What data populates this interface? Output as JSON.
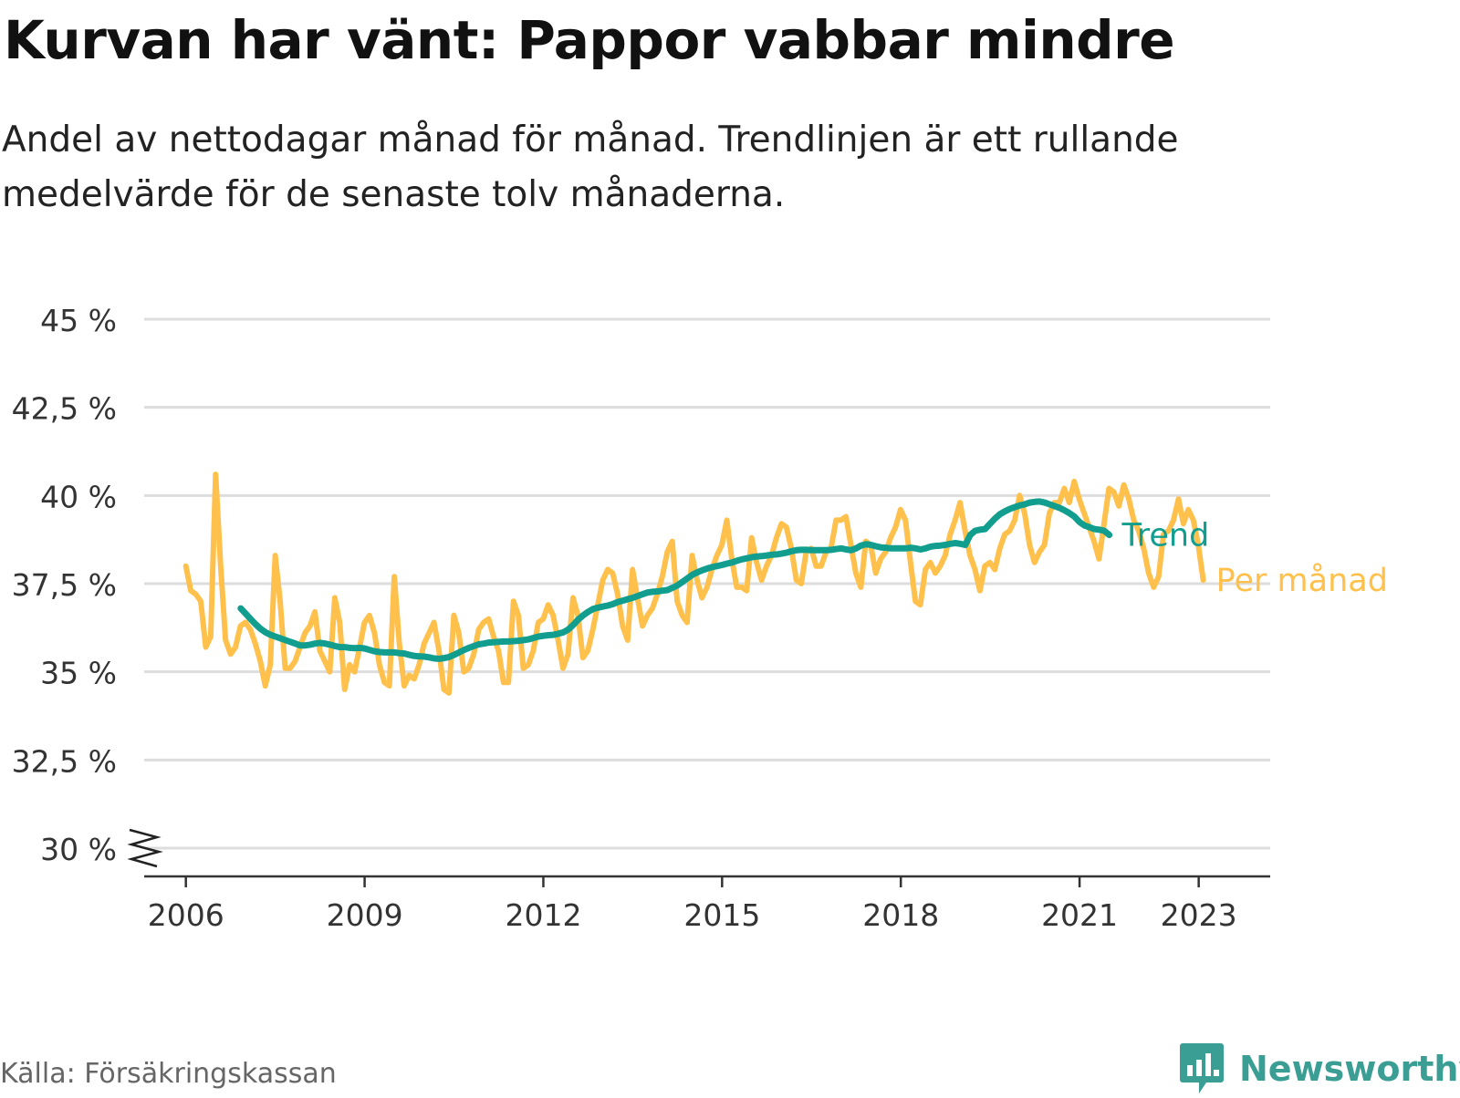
{
  "title": "Kurvan har vänt: Pappor vabbar mindre",
  "subtitle": "Andel av nettodagar månad för månad. Trendlinjen är ett rullande medelvärde för de senaste tolv månaderna.",
  "source": "Källa: Försäkringskassan",
  "brand": {
    "name": "Newsworthy",
    "icon": "newsworthy-logo-icon",
    "color": "#3a9e94"
  },
  "chart_data": {
    "type": "line",
    "title": "Kurvan har vänt: Pappor vabbar mindre",
    "xlabel": "",
    "ylabel": "",
    "ylim": [
      30,
      45
    ],
    "yticks": [
      30,
      32.5,
      35,
      37.5,
      40,
      42.5,
      45
    ],
    "ytick_labels": [
      "30 %",
      "32,5 %",
      "35 %",
      "37,5 %",
      "40 %",
      "42,5 %",
      "45 %"
    ],
    "xlim": [
      2005.3,
      2024.2
    ],
    "xticks": [
      2006,
      2009,
      2012,
      2015,
      2018,
      2021,
      2023
    ],
    "xtick_labels": [
      "2006",
      "2009",
      "2012",
      "2015",
      "2018",
      "2021",
      "2023"
    ],
    "grid": true,
    "axis_break": true,
    "legend": "direct-labels-right",
    "series": [
      {
        "name": "Per månad",
        "color": "#ffc04c",
        "start": 2006.0,
        "step": 0.0833,
        "values": [
          38.0,
          37.3,
          37.2,
          37.0,
          35.7,
          36.0,
          40.6,
          38.0,
          35.9,
          35.5,
          35.7,
          36.3,
          36.4,
          36.2,
          35.8,
          35.3,
          34.6,
          35.2,
          38.3,
          37.0,
          35.1,
          35.1,
          35.3,
          35.7,
          36.1,
          36.3,
          36.7,
          35.6,
          35.3,
          35.0,
          37.1,
          36.4,
          34.5,
          35.2,
          35.0,
          35.7,
          36.4,
          36.6,
          36.1,
          35.2,
          34.7,
          34.6,
          37.7,
          35.8,
          34.6,
          34.9,
          34.8,
          35.2,
          35.8,
          36.1,
          36.4,
          35.6,
          34.5,
          34.4,
          36.6,
          36.1,
          35.0,
          35.1,
          35.5,
          36.2,
          36.4,
          36.5,
          36.0,
          35.6,
          34.7,
          34.7,
          37.0,
          36.6,
          35.1,
          35.2,
          35.6,
          36.4,
          36.5,
          36.9,
          36.6,
          35.9,
          35.1,
          35.5,
          37.1,
          36.6,
          35.4,
          35.6,
          36.2,
          36.9,
          37.6,
          37.9,
          37.8,
          37.2,
          36.3,
          35.9,
          37.9,
          37.1,
          36.3,
          36.6,
          36.8,
          37.2,
          37.7,
          38.4,
          38.7,
          37.0,
          36.6,
          36.4,
          38.3,
          37.6,
          37.1,
          37.4,
          37.9,
          38.3,
          38.6,
          39.3,
          38.2,
          37.4,
          37.4,
          37.3,
          38.8,
          38.1,
          37.6,
          38.0,
          38.3,
          38.8,
          39.2,
          39.1,
          38.5,
          37.6,
          37.5,
          38.4,
          38.5,
          38.0,
          38.0,
          38.4,
          38.5,
          39.3,
          39.3,
          39.4,
          38.6,
          37.8,
          37.4,
          38.7,
          38.6,
          37.8,
          38.2,
          38.4,
          38.8,
          39.1,
          39.6,
          39.3,
          38.1,
          37.0,
          36.9,
          37.9,
          38.1,
          37.8,
          38.0,
          38.3,
          38.9,
          39.3,
          39.8,
          39.0,
          38.3,
          37.9,
          37.3,
          38.0,
          38.1,
          37.9,
          38.5,
          38.9,
          39.0,
          39.3,
          40.0,
          39.5,
          38.6,
          38.1,
          38.4,
          38.6,
          39.5,
          39.8,
          39.8,
          40.2,
          39.8,
          40.4,
          39.9,
          39.5,
          39.1,
          38.7,
          38.2,
          39.2,
          40.2,
          40.1,
          39.7,
          40.3,
          39.9,
          39.3,
          39.0,
          38.5,
          37.8,
          37.4,
          37.7,
          38.9,
          39.0,
          39.3,
          39.9,
          39.2,
          39.6,
          39.3,
          38.6,
          37.6
        ]
      },
      {
        "name": "Trend",
        "color": "#129e8f",
        "start": 2006.92,
        "step": 0.0833,
        "values": [
          36.8,
          36.65,
          36.5,
          36.35,
          36.22,
          36.12,
          36.05,
          36.0,
          35.95,
          35.9,
          35.85,
          35.8,
          35.75,
          35.75,
          35.77,
          35.8,
          35.82,
          35.8,
          35.77,
          35.73,
          35.7,
          35.7,
          35.68,
          35.67,
          35.68,
          35.66,
          35.62,
          35.58,
          35.56,
          35.55,
          35.55,
          35.55,
          35.53,
          35.52,
          35.48,
          35.45,
          35.44,
          35.43,
          35.41,
          35.38,
          35.37,
          35.39,
          35.42,
          35.48,
          35.55,
          35.62,
          35.68,
          35.73,
          35.78,
          35.8,
          35.83,
          35.84,
          35.85,
          35.86,
          35.86,
          35.87,
          35.88,
          35.9,
          35.92,
          35.96,
          36.0,
          36.02,
          36.04,
          36.05,
          36.08,
          36.12,
          36.2,
          36.33,
          36.48,
          36.6,
          36.7,
          36.78,
          36.82,
          36.85,
          36.88,
          36.92,
          36.98,
          37.02,
          37.06,
          37.1,
          37.15,
          37.2,
          37.25,
          37.27,
          37.28,
          37.3,
          37.32,
          37.38,
          37.45,
          37.55,
          37.65,
          37.75,
          37.82,
          37.88,
          37.93,
          37.97,
          38.0,
          38.03,
          38.07,
          38.1,
          38.15,
          38.19,
          38.22,
          38.25,
          38.27,
          38.28,
          38.3,
          38.32,
          38.33,
          38.35,
          38.38,
          38.42,
          38.45,
          38.46,
          38.46,
          38.45,
          38.45,
          38.45,
          38.45,
          38.46,
          38.48,
          38.5,
          38.47,
          38.45,
          38.5,
          38.58,
          38.62,
          38.6,
          38.56,
          38.53,
          38.52,
          38.5,
          38.5,
          38.5,
          38.5,
          38.52,
          38.5,
          38.47,
          38.5,
          38.55,
          38.57,
          38.58,
          38.6,
          38.63,
          38.65,
          38.63,
          38.6,
          38.88,
          39.0,
          39.03,
          39.05,
          39.2,
          39.35,
          39.47,
          39.55,
          39.62,
          39.67,
          39.72,
          39.75,
          39.8,
          39.82,
          39.83,
          39.8,
          39.75,
          39.7,
          39.65,
          39.58,
          39.5,
          39.4,
          39.25,
          39.15,
          39.1,
          39.05,
          39.03,
          39.0,
          38.88
        ]
      }
    ]
  }
}
